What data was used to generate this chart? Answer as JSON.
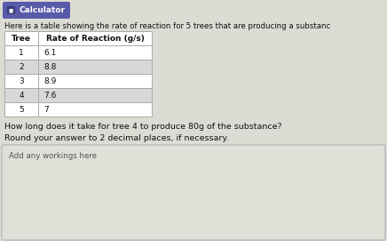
{
  "title_badge": "Calculator",
  "intro_text": "Here is a table showing the rate of reaction for 5 trees that are producing a substanc",
  "col1_header": "Tree",
  "col2_header": "Rate of Reaction (g/s)",
  "rows": [
    [
      "1",
      "6.1"
    ],
    [
      "2",
      "8.8"
    ],
    [
      "3",
      "8.9"
    ],
    [
      "4",
      "7.6"
    ],
    [
      "5",
      "7"
    ]
  ],
  "question": "How long does it take for tree 4 to produce 80g of the substance?",
  "instruction": "Round your answer to 2 decimal places, if necessary.",
  "workings_label": "Add any workings here",
  "bg_color": "#dcdcd4",
  "table_bg": "#ffffff",
  "badge_bg": "#5a5aaa",
  "badge_icon_bg": "#3a3a7a",
  "badge_text_color": "#ffffff",
  "alt_row_bg": "#d8d8d8",
  "border_color": "#aaaaaa",
  "text_color": "#111111",
  "workings_box_bg": "#e0e0d8",
  "workings_border": "#aaaaaa"
}
